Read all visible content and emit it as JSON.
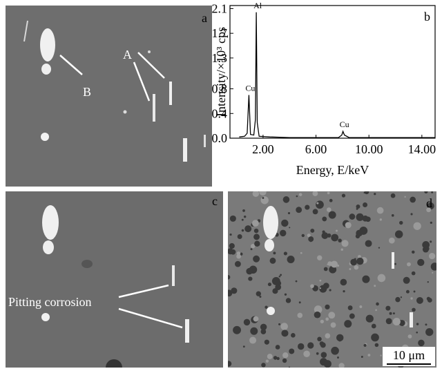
{
  "panels": {
    "a": {
      "label": "a",
      "annotations": [
        "A",
        "B"
      ]
    },
    "c": {
      "label": "c",
      "annotation": "Pitting corrosion"
    },
    "d": {
      "label": "d",
      "scale_bar": "10 μm"
    }
  },
  "chart_data": {
    "type": "line",
    "label": "b",
    "ylabel": "Intensity/×10³ cps",
    "xlabel": "Energy, E/keV",
    "x": [
      0.2,
      0.6,
      0.8,
      0.93,
      1.05,
      1.3,
      1.42,
      1.49,
      1.56,
      1.7,
      2.5,
      4.0,
      6.0,
      7.7,
      7.95,
      8.04,
      8.15,
      8.5,
      10.0,
      12.0,
      15.0
    ],
    "values": [
      0.02,
      0.03,
      0.08,
      0.7,
      0.06,
      0.05,
      0.3,
      2.04,
      0.25,
      0.03,
      0.02,
      0.01,
      0.01,
      0.01,
      0.05,
      0.11,
      0.05,
      0.01,
      0.01,
      0.01,
      0.01
    ],
    "color": "#000000",
    "annotations": [
      {
        "text": "Cu",
        "x": 0.93,
        "y": 0.7
      },
      {
        "text": "Al",
        "x": 1.49,
        "y": 2.04
      },
      {
        "text": "Cu",
        "x": 8.04,
        "y": 0.11
      }
    ],
    "xlim": [
      -0.5,
      15.0
    ],
    "ylim": [
      0,
      2.15
    ],
    "xticks": [
      {
        "value": 2,
        "label": "2.00"
      },
      {
        "value": 6,
        "label": "6.00"
      },
      {
        "value": 10,
        "label": "10.00"
      },
      {
        "value": 14,
        "label": "14.00"
      }
    ],
    "yticks": [
      {
        "value": 0,
        "label": "0.0"
      },
      {
        "value": 0.4,
        "label": "0.4"
      },
      {
        "value": 0.8,
        "label": "0.8"
      },
      {
        "value": 1.3,
        "label": "1.3"
      },
      {
        "value": 1.7,
        "label": "1.7"
      },
      {
        "value": 2.1,
        "label": "2.1"
      }
    ]
  }
}
